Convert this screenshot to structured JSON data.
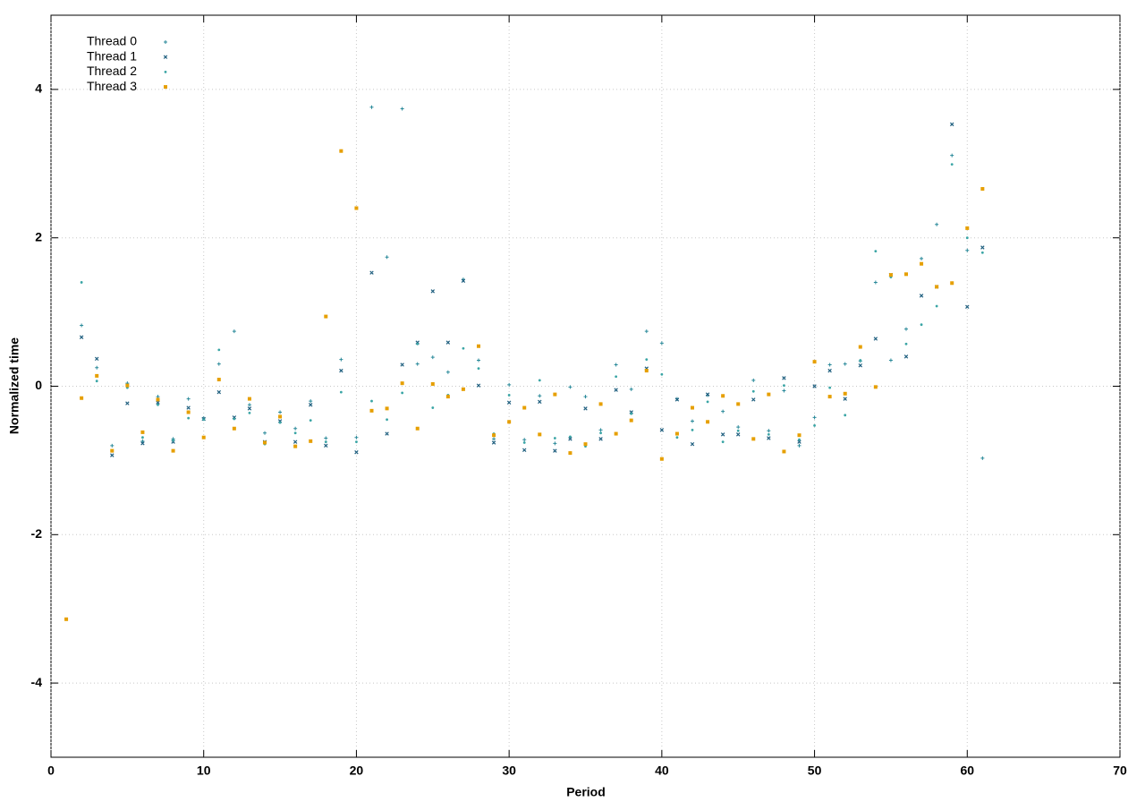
{
  "chart_data": {
    "type": "scatter",
    "xlabel": "Period",
    "ylabel": "Normalized time",
    "x": [
      1,
      2,
      3,
      4,
      5,
      6,
      7,
      8,
      9,
      10,
      11,
      12,
      13,
      14,
      15,
      16,
      17,
      18,
      19,
      20,
      21,
      22,
      23,
      24,
      25,
      26,
      27,
      28,
      29,
      30,
      31,
      32,
      33,
      34,
      35,
      36,
      37,
      38,
      39,
      40,
      41,
      42,
      43,
      44,
      45,
      46,
      47,
      48,
      49,
      50,
      51,
      52,
      53,
      54,
      55,
      56,
      57,
      58,
      59,
      60,
      61
    ],
    "series": [
      {
        "name": "Thread 0",
        "color": "#2a8a9a",
        "marker": "plus",
        "values": [
          null,
          0.82,
          0.25,
          -0.8,
          0.04,
          -0.74,
          -0.14,
          -0.71,
          -0.17,
          -0.43,
          0.3,
          0.74,
          -0.25,
          -0.63,
          -0.35,
          -0.57,
          -0.2,
          -0.7,
          0.36,
          -0.69,
          3.76,
          1.74,
          3.74,
          0.3,
          0.39,
          0.19,
          1.44,
          0.35,
          -0.71,
          0.02,
          -0.72,
          -0.13,
          -0.77,
          -0.01,
          -0.14,
          -0.59,
          0.29,
          -0.04,
          0.74,
          0.58,
          -0.17,
          -0.47,
          -0.12,
          -0.34,
          -0.55,
          0.08,
          -0.6,
          -0.06,
          -0.8,
          -0.42,
          0.29,
          0.3,
          0.34,
          1.4,
          0.35,
          0.77,
          1.72,
          2.18,
          3.11,
          1.83,
          -0.97
        ]
      },
      {
        "name": "Thread 1",
        "color": "#1f5f7f",
        "marker": "cross",
        "values": [
          null,
          0.66,
          0.37,
          -0.93,
          -0.23,
          -0.77,
          -0.22,
          -0.75,
          -0.29,
          -0.44,
          -0.08,
          -0.42,
          -0.3,
          -0.75,
          -0.47,
          -0.75,
          -0.25,
          -0.8,
          0.21,
          -0.89,
          1.53,
          -0.64,
          0.29,
          0.59,
          1.28,
          0.59,
          1.42,
          0.01,
          -0.76,
          -0.22,
          -0.86,
          -0.21,
          -0.87,
          -0.71,
          -0.3,
          -0.71,
          -0.05,
          -0.35,
          0.24,
          -0.59,
          -0.18,
          -0.78,
          -0.11,
          -0.65,
          -0.65,
          -0.18,
          -0.7,
          0.11,
          -0.75,
          0,
          0.21,
          -0.17,
          0.28,
          0.64,
          1.5,
          0.4,
          1.22,
          1.34,
          3.53,
          1.07,
          1.87
        ]
      },
      {
        "name": "Thread 2",
        "color": "#3aa5a5",
        "marker": "dot",
        "values": [
          null,
          1.4,
          0.07,
          -0.87,
          -0.02,
          -0.69,
          -0.25,
          -0.73,
          -0.43,
          -0.45,
          0.49,
          -0.44,
          -0.36,
          -0.78,
          -0.49,
          -0.63,
          -0.46,
          -0.75,
          -0.08,
          -0.75,
          -0.2,
          -0.45,
          -0.09,
          0.57,
          -0.29,
          -0.12,
          0.51,
          0.24,
          -0.64,
          -0.12,
          -0.76,
          0.08,
          -0.7,
          -0.68,
          -0.81,
          -0.63,
          0.13,
          -0.37,
          0.36,
          0.16,
          -0.69,
          -0.59,
          -0.21,
          -0.75,
          -0.6,
          -0.07,
          -0.65,
          0.01,
          -0.72,
          -0.53,
          -0.02,
          -0.39,
          0.35,
          1.82,
          1.47,
          0.57,
          0.83,
          1.08,
          2.99,
          2.0,
          1.8
        ]
      },
      {
        "name": "Thread 3",
        "color": "#e69f00",
        "marker": "square",
        "values": [
          -3.14,
          -0.16,
          0.14,
          -0.87,
          0.01,
          -0.62,
          -0.18,
          -0.87,
          -0.35,
          -0.69,
          0.09,
          -0.57,
          -0.17,
          -0.76,
          -0.41,
          -0.81,
          -0.74,
          0.94,
          3.17,
          2.4,
          -0.33,
          -0.3,
          0.04,
          -0.57,
          0.03,
          -0.14,
          -0.04,
          0.54,
          -0.66,
          -0.48,
          -0.29,
          -0.65,
          -0.11,
          -0.9,
          -0.78,
          -0.24,
          -0.64,
          -0.46,
          0.21,
          -0.98,
          -0.64,
          -0.29,
          -0.48,
          -0.13,
          -0.24,
          -0.71,
          -0.11,
          -0.88,
          -0.66,
          0.33,
          -0.14,
          -0.1,
          0.53,
          -0.01,
          1.5,
          1.51,
          1.65,
          1.34,
          1.39,
          2.13,
          2.66
        ]
      }
    ],
    "xlim": [
      0,
      70
    ],
    "xticks": [
      0,
      10,
      20,
      30,
      40,
      50,
      60,
      70
    ],
    "ylim": [
      -5,
      5
    ],
    "yticks": [
      -4,
      -2,
      0,
      2,
      4
    ],
    "grid": true,
    "legend": "top-left"
  }
}
